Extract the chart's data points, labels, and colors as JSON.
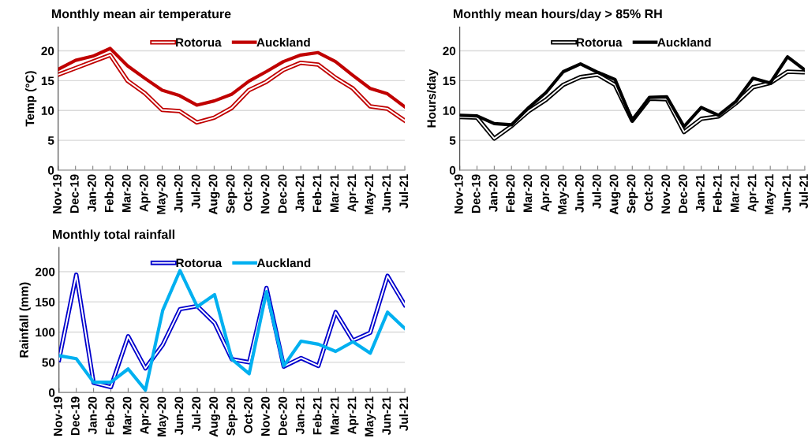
{
  "chart_data": [
    {
      "type": "line",
      "title": "Monthly mean air temperature",
      "ylabel": "Temp (°C)",
      "categories": [
        "Nov-19",
        "Dec-19",
        "Jan-20",
        "Feb-20",
        "Mar-20",
        "Apr-20",
        "May-20",
        "Jun-20",
        "Jul-20",
        "Aug-20",
        "Sep-20",
        "Oct-20",
        "Nov-20",
        "Dec-20",
        "Jan-21",
        "Feb-21",
        "Mar-21",
        "Apr-21",
        "May-21",
        "Jun-21",
        "Jul-21"
      ],
      "series": [
        {
          "name": "Rotorua",
          "color": "#c00000",
          "values": [
            16.0,
            17.1,
            18.2,
            19.3,
            15.0,
            12.9,
            10.1,
            9.9,
            8.0,
            8.8,
            10.4,
            13.4,
            14.8,
            16.8,
            18.0,
            17.7,
            15.5,
            13.7,
            10.7,
            10.3,
            8.3
          ]
        },
        {
          "name": "Auckland",
          "color": "#c00000",
          "values": [
            16.9,
            18.4,
            19.1,
            20.4,
            17.5,
            15.4,
            13.4,
            12.5,
            10.9,
            11.6,
            12.7,
            14.9,
            16.5,
            18.2,
            19.3,
            19.7,
            18.2,
            15.9,
            13.7,
            12.8,
            10.6
          ]
        }
      ],
      "ylim": [
        0,
        24
      ],
      "yticks": [
        0,
        5,
        10,
        15,
        20
      ],
      "grid": "y",
      "legend": "top",
      "marker": "none",
      "line_style": "solid"
    },
    {
      "type": "line",
      "title": "Monthly mean hours/day > 85% RH",
      "ylabel": "Hours/day",
      "categories": [
        "Nov-19",
        "Dec-19",
        "Jan-20",
        "Feb-20",
        "Mar-20",
        "Apr-20",
        "May-20",
        "Jun-20",
        "Jul-20",
        "Aug-20",
        "Sep-20",
        "Oct-20",
        "Nov-20",
        "Dec-20",
        "Jan-21",
        "Feb-21",
        "Mar-21",
        "Apr-21",
        "May-21",
        "Jun-21",
        "Jul-21"
      ],
      "series": [
        {
          "name": "Rotorua",
          "color": "#000000",
          "values": [
            8.9,
            8.8,
            5.3,
            7.4,
            9.9,
            11.8,
            14.3,
            15.6,
            16.0,
            14.3,
            8.3,
            12.0,
            11.9,
            6.4,
            8.6,
            9.0,
            11.2,
            13.9,
            14.6,
            16.5,
            16.4
          ]
        },
        {
          "name": "Auckland",
          "color": "#000000",
          "values": [
            9.2,
            9.1,
            7.8,
            7.6,
            10.5,
            13.0,
            16.5,
            17.8,
            16.4,
            15.2,
            8.3,
            12.2,
            12.3,
            7.3,
            10.5,
            9.2,
            11.5,
            15.4,
            14.6,
            19.0,
            16.8
          ]
        }
      ],
      "ylim": [
        0,
        24
      ],
      "yticks": [
        0,
        5,
        10,
        15,
        20
      ],
      "grid": "y",
      "legend": "top",
      "marker": "none",
      "line_style": "solid"
    },
    {
      "type": "line",
      "title": "Monthly total rainfall",
      "ylabel": "Rainfall (mm)",
      "categories": [
        "Nov-19",
        "Dec-19",
        "Jan-20",
        "Feb-20",
        "Mar-20",
        "Apr-20",
        "May-20",
        "Jun-20",
        "Jul-20",
        "Aug-20",
        "Sep-20",
        "Oct-20",
        "Nov-20",
        "Dec-20",
        "Jan-21",
        "Feb-21",
        "Mar-21",
        "Apr-21",
        "May-21",
        "Jun-21",
        "Jul-21"
      ],
      "series": [
        {
          "name": "Rotorua",
          "color": "#0000cc",
          "values": [
            54,
            195,
            16,
            9,
            93,
            40,
            79,
            138,
            143,
            115,
            55,
            50,
            173,
            43,
            57,
            44,
            133,
            86,
            99,
            193,
            145
          ]
        },
        {
          "name": "Auckland",
          "color": "#00b0f0",
          "values": [
            61,
            56,
            17,
            17,
            39,
            4,
            136,
            202,
            142,
            162,
            55,
            31,
            167,
            44,
            85,
            80,
            68,
            84,
            65,
            133,
            106
          ]
        }
      ],
      "ylim": [
        0,
        240
      ],
      "yticks": [
        0,
        50,
        100,
        150,
        200
      ],
      "grid": "y",
      "legend": "top",
      "marker": "none",
      "line_style": "solid"
    }
  ]
}
